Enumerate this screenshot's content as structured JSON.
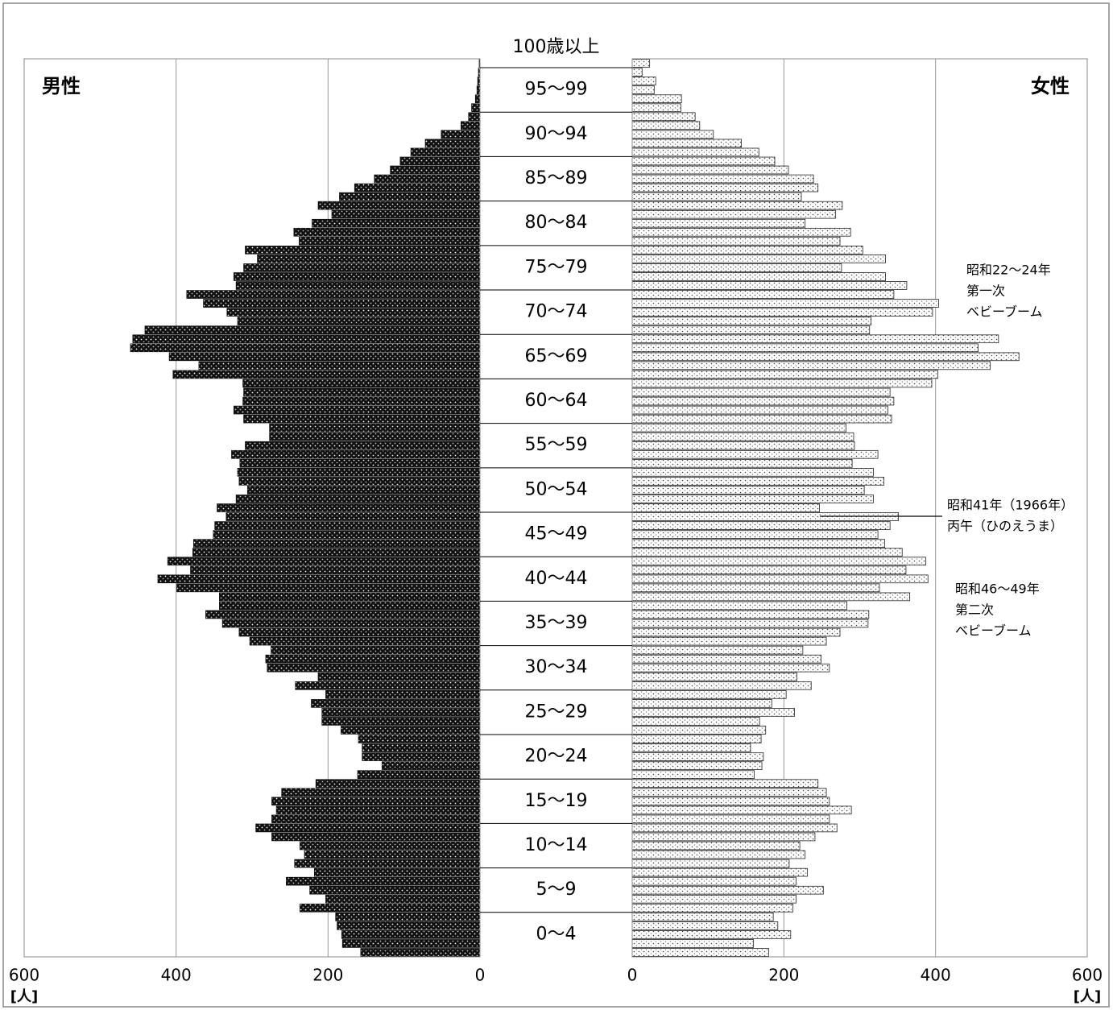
{
  "chart_data": {
    "type": "pyramid",
    "age_groups": [
      "0～4",
      "5～9",
      "10～14",
      "15～19",
      "20～24",
      "25～29",
      "30～34",
      "35～39",
      "40～44",
      "45～49",
      "50～54",
      "55～59",
      "60～64",
      "65～69",
      "70～74",
      "75～79",
      "80～84",
      "85～89",
      "90～94",
      "95～99",
      "100歳以上"
    ],
    "series": [
      {
        "name": "男性",
        "color": "#111111",
        "values": [
          157,
          181,
          182,
          188,
          190,
          237,
          203,
          224,
          255,
          218,
          244,
          231,
          237,
          274,
          295,
          274,
          268,
          274,
          261,
          216,
          161,
          129,
          155,
          155,
          160,
          183,
          208,
          208,
          222,
          203,
          243,
          213,
          280,
          282,
          275,
          303,
          317,
          339,
          361,
          343,
          343,
          399,
          424,
          381,
          411,
          378,
          377,
          351,
          349,
          334,
          346,
          321,
          306,
          317,
          319,
          316,
          327,
          309,
          277,
          277,
          311,
          324,
          312,
          311,
          312,
          404,
          370,
          409,
          460,
          457,
          441,
          319,
          333,
          364,
          386,
          321,
          324,
          311,
          293,
          309,
          238,
          245,
          221,
          195,
          213,
          185,
          165,
          139,
          118,
          105,
          91,
          72,
          51,
          25,
          15,
          11,
          6,
          4,
          3,
          2,
          1
        ]
      },
      {
        "name": "女性",
        "color": "#ffffff",
        "values": [
          180,
          160,
          209,
          192,
          186,
          212,
          216,
          252,
          216,
          231,
          207,
          228,
          221,
          241,
          270,
          260,
          289,
          260,
          256,
          245,
          161,
          171,
          173,
          156,
          170,
          176,
          168,
          214,
          184,
          203,
          236,
          217,
          260,
          249,
          225,
          256,
          274,
          311,
          312,
          283,
          366,
          326,
          390,
          361,
          387,
          356,
          333,
          324,
          340,
          351,
          247,
          318,
          306,
          332,
          318,
          290,
          324,
          293,
          292,
          282,
          342,
          337,
          345,
          340,
          395,
          403,
          472,
          510,
          456,
          483,
          313,
          315,
          396,
          404,
          345,
          362,
          334,
          276,
          334,
          304,
          274,
          288,
          228,
          268,
          277,
          223,
          245,
          239,
          206,
          188,
          167,
          144,
          107,
          89,
          83,
          64,
          65,
          29,
          31,
          13,
          23
        ]
      }
    ],
    "xlim": [
      0,
      600
    ],
    "xticks": [
      0,
      200,
      400,
      600
    ],
    "xlabel": "[人]",
    "annotations": [
      [
        "昭和22～24年",
        "第一次",
        "ベビーブーム"
      ],
      [
        "昭和41年（1966年）",
        "丙午（ひのえうま）"
      ],
      [
        "昭和46～49年",
        "第二次",
        "ベビーブーム"
      ]
    ]
  }
}
